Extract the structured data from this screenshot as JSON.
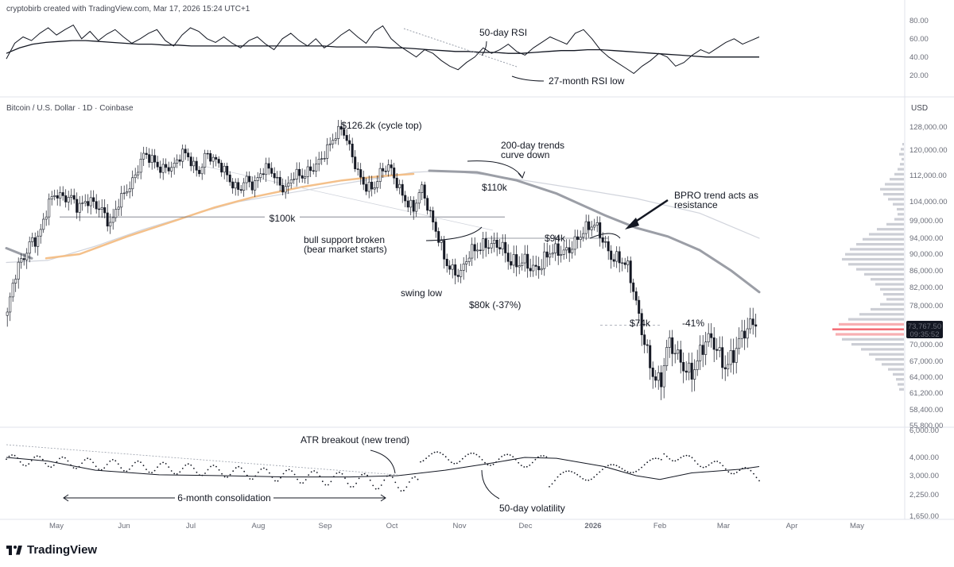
{
  "header": {
    "credit": "cryptobirb created with TradingView.com, Mar 17, 2026 15:24 UTC+1",
    "symbol": "Bitcoin / U.S. Dollar · 1D · Coinbase",
    "currency": "USD"
  },
  "footer": {
    "brand": "TradingView"
  },
  "chart_data": [
    {
      "panel": "rsi",
      "type": "line",
      "y_ticks": [
        "80.00",
        "60.00",
        "40.00",
        "20.00"
      ],
      "ylim": [
        5,
        85
      ],
      "series": [
        {
          "name": "50-day RSI",
          "values": [
            38,
            55,
            62,
            58,
            66,
            72,
            64,
            70,
            75,
            60,
            68,
            58,
            65,
            70,
            62,
            55,
            60,
            66,
            70,
            58,
            52,
            64,
            72,
            68,
            60,
            56,
            62,
            55,
            50,
            58,
            62,
            54,
            48,
            60,
            66,
            58,
            52,
            60,
            50,
            56,
            64,
            70,
            62,
            55,
            68,
            74,
            60,
            52,
            46,
            40,
            48,
            44,
            36,
            30,
            26,
            34,
            40,
            50,
            44,
            48,
            54,
            46,
            42,
            50,
            56,
            62,
            58,
            54,
            66,
            70,
            60,
            48,
            40,
            34,
            28,
            22,
            30,
            36,
            44,
            40,
            30,
            34,
            42,
            48,
            44,
            50,
            56,
            60,
            54,
            58,
            62
          ]
        },
        {
          "name": "trend",
          "values": [
            44,
            50,
            54,
            56,
            57,
            58,
            58,
            57,
            56,
            55,
            54,
            54,
            53,
            53,
            52,
            52,
            52,
            52,
            52,
            52,
            52,
            52,
            52,
            52,
            52,
            51,
            51,
            51,
            51,
            50,
            50,
            49,
            48,
            47,
            46,
            46,
            45,
            45,
            44,
            44,
            45,
            46,
            47,
            47,
            48,
            48,
            47,
            46,
            45,
            44,
            43,
            42,
            41,
            40,
            40,
            40,
            40,
            40
          ]
        }
      ],
      "annotations": [
        "50-day RSI",
        "27-month RSI low"
      ]
    },
    {
      "panel": "price",
      "type": "candlestick",
      "x_ticks": [
        "May",
        "Jun",
        "Jul",
        "Aug",
        "Sep",
        "Oct",
        "Nov",
        "Dec",
        "2026",
        "Feb",
        "Mar",
        "Apr",
        "May"
      ],
      "y_ticks": [
        "128,000.00",
        "120,000.00",
        "112,000.00",
        "104,000.00",
        "99,000.00",
        "94,000.00",
        "90,000.00",
        "86,000.00",
        "82,000.00",
        "78,000.00",
        "70,000.00",
        "67,000.00",
        "64,000.00",
        "61,200.00",
        "58,400.00",
        "55,800.00"
      ],
      "close_path": [
        76000,
        84000,
        88000,
        94000,
        96000,
        103000,
        105000,
        104000,
        106000,
        104000,
        105000,
        102000,
        100000,
        98000,
        106000,
        108000,
        110000,
        117000,
        118000,
        116000,
        115000,
        114000,
        118000,
        117000,
        114000,
        120000,
        116000,
        113000,
        110000,
        109000,
        112000,
        108000,
        112000,
        114000,
        111000,
        109000,
        112000,
        110000,
        113000,
        117000,
        121000,
        124000,
        126200,
        120000,
        114000,
        110000,
        108000,
        112000,
        114000,
        110000,
        106000,
        102000,
        107000,
        100000,
        96000,
        90000,
        86000,
        84000,
        89000,
        92000,
        94000,
        93000,
        91000,
        87000,
        88000,
        90000,
        87000,
        86000,
        89000,
        91000,
        92000,
        93000,
        94000,
        96000,
        97500,
        94000,
        90000,
        88000,
        85000,
        78000,
        72000,
        66000,
        62000,
        69000,
        68000,
        67000,
        66000,
        68000,
        70000,
        69000,
        67000,
        69000,
        71000,
        72000,
        73767
      ],
      "last_price": "73,767.50",
      "countdown": "09:35:52",
      "levels": [
        "$100k",
        "$94k",
        "$74k"
      ],
      "annotations": [
        "$126.2k (cycle top)",
        "200-day trends",
        "curve down",
        "$110k",
        "BPRO trend acts as",
        "resistance",
        "bull support broken",
        "(bear market starts)",
        "swing low",
        "$80k (-37%)",
        "-41%"
      ],
      "volume_profile": [
        2,
        4,
        6,
        3,
        5,
        8,
        12,
        18,
        24,
        30,
        26,
        20,
        14,
        9,
        8,
        12,
        22,
        34,
        44,
        52,
        60,
        68,
        74,
        78,
        70,
        60,
        50,
        42,
        36,
        30,
        26,
        22,
        30,
        42,
        56,
        70,
        82,
        90,
        86,
        78,
        66,
        54,
        44,
        36,
        28,
        20,
        14,
        10,
        8,
        6
      ]
    },
    {
      "panel": "atr",
      "type": "scatter",
      "y_ticks": [
        "6,000.00",
        "4,000.00",
        "3,000.00",
        "2,250.00",
        "1,650.00"
      ],
      "annotations": [
        "ATR breakout (new trend)",
        "6-month consolidation",
        "50-day volatility"
      ]
    }
  ]
}
